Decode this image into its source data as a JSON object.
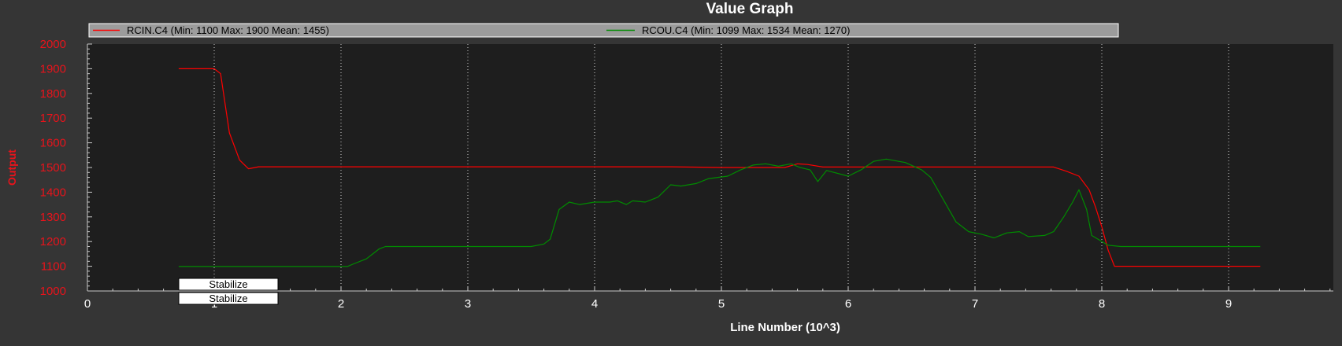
{
  "chart_data": {
    "type": "line",
    "title": "Value Graph",
    "xlabel": "Line Number (10^3)",
    "ylabel": "Output",
    "xlim": [
      0,
      9.9
    ],
    "ylim": [
      1000,
      2000
    ],
    "x_ticks": [
      0,
      1,
      2,
      3,
      4,
      5,
      6,
      7,
      8,
      9
    ],
    "y_ticks": [
      1000,
      1100,
      1200,
      1300,
      1400,
      1500,
      1600,
      1700,
      1800,
      1900,
      2000
    ],
    "grid": "vertical dotted",
    "legend_position": "top",
    "series": [
      {
        "name": "RCIN.C4 (Min: 1100 Max: 1900 Mean: 1455)",
        "color": "#ff0000",
        "points": [
          [
            0.72,
            1900
          ],
          [
            1.0,
            1900
          ],
          [
            1.05,
            1880
          ],
          [
            1.12,
            1640
          ],
          [
            1.2,
            1530
          ],
          [
            1.27,
            1495
          ],
          [
            1.35,
            1503
          ],
          [
            4.6,
            1503
          ],
          [
            5.0,
            1500
          ],
          [
            5.5,
            1500
          ],
          [
            5.6,
            1515
          ],
          [
            5.68,
            1512
          ],
          [
            5.8,
            1502
          ],
          [
            6.5,
            1502
          ],
          [
            7.62,
            1502
          ],
          [
            7.72,
            1485
          ],
          [
            7.82,
            1465
          ],
          [
            7.9,
            1410
          ],
          [
            7.95,
            1340
          ],
          [
            8.0,
            1260
          ],
          [
            8.05,
            1165
          ],
          [
            8.1,
            1100
          ],
          [
            9.25,
            1100
          ]
        ]
      },
      {
        "name": "RCOU.C4 (Min: 1099 Max: 1534 Mean: 1270)",
        "color": "#008c00",
        "points": [
          [
            0.72,
            1099
          ],
          [
            2.05,
            1099
          ],
          [
            2.1,
            1110
          ],
          [
            2.2,
            1130
          ],
          [
            2.25,
            1150
          ],
          [
            2.3,
            1170
          ],
          [
            2.35,
            1180
          ],
          [
            2.5,
            1180
          ],
          [
            3.5,
            1180
          ],
          [
            3.6,
            1190
          ],
          [
            3.65,
            1210
          ],
          [
            3.72,
            1330
          ],
          [
            3.8,
            1360
          ],
          [
            3.88,
            1350
          ],
          [
            4.0,
            1360
          ],
          [
            4.12,
            1360
          ],
          [
            4.18,
            1365
          ],
          [
            4.25,
            1350
          ],
          [
            4.3,
            1365
          ],
          [
            4.4,
            1360
          ],
          [
            4.5,
            1380
          ],
          [
            4.6,
            1430
          ],
          [
            4.68,
            1425
          ],
          [
            4.8,
            1435
          ],
          [
            4.9,
            1455
          ],
          [
            5.05,
            1465
          ],
          [
            5.15,
            1490
          ],
          [
            5.25,
            1510
          ],
          [
            5.35,
            1515
          ],
          [
            5.45,
            1505
          ],
          [
            5.55,
            1515
          ],
          [
            5.62,
            1500
          ],
          [
            5.7,
            1490
          ],
          [
            5.76,
            1443
          ],
          [
            5.83,
            1488
          ],
          [
            6.0,
            1465
          ],
          [
            6.1,
            1490
          ],
          [
            6.2,
            1525
          ],
          [
            6.3,
            1534
          ],
          [
            6.45,
            1520
          ],
          [
            6.58,
            1490
          ],
          [
            6.65,
            1460
          ],
          [
            6.75,
            1370
          ],
          [
            6.85,
            1280
          ],
          [
            6.95,
            1240
          ],
          [
            7.05,
            1230
          ],
          [
            7.15,
            1215
          ],
          [
            7.25,
            1235
          ],
          [
            7.35,
            1240
          ],
          [
            7.42,
            1220
          ],
          [
            7.55,
            1225
          ],
          [
            7.62,
            1240
          ],
          [
            7.7,
            1300
          ],
          [
            7.77,
            1360
          ],
          [
            7.82,
            1410
          ],
          [
            7.88,
            1330
          ],
          [
            7.92,
            1225
          ],
          [
            8.05,
            1185
          ],
          [
            8.15,
            1180
          ],
          [
            9.25,
            1180
          ]
        ]
      }
    ],
    "annotations": [
      "Stabilize",
      "Stabilize"
    ]
  }
}
